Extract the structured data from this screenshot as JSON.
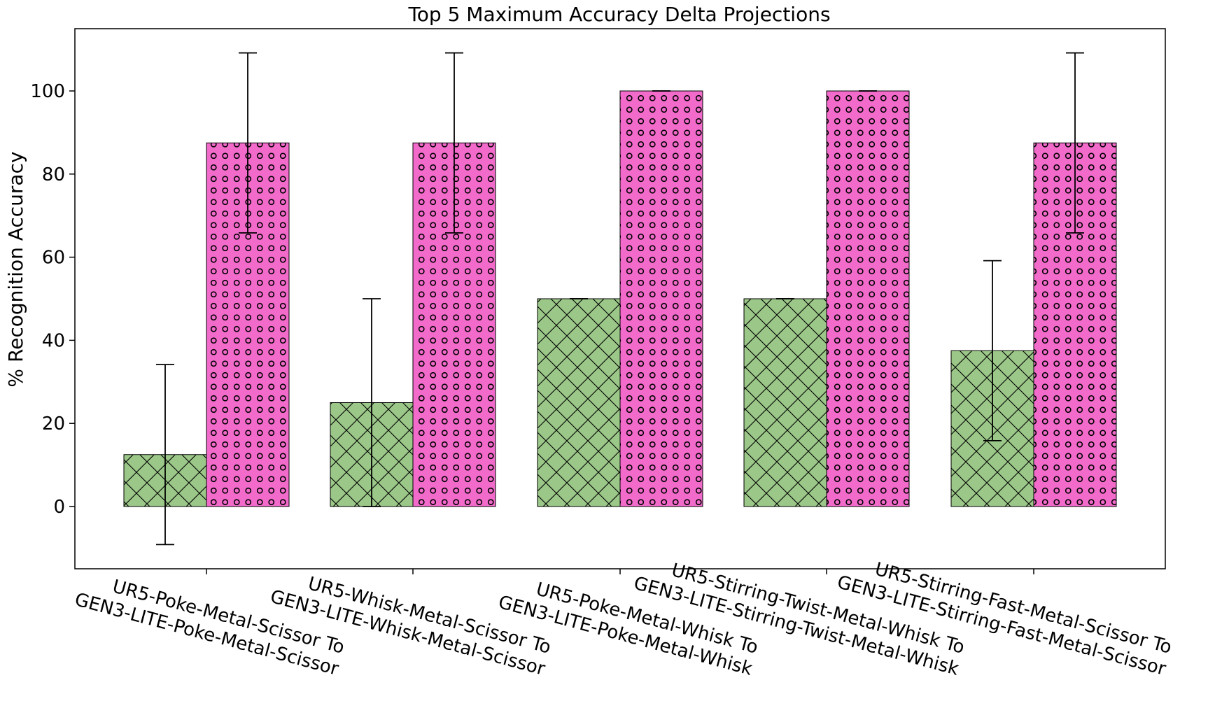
{
  "chart_data": {
    "type": "bar",
    "title": "Top 5 Maximum Accuracy Delta Projections",
    "xlabel": "",
    "ylabel": "% Recognition Accuracy",
    "ylim": [
      -15,
      115
    ],
    "yticks": [
      0,
      20,
      40,
      60,
      80,
      100
    ],
    "grid": false,
    "legend": "none",
    "categories": [
      [
        "UR5-Poke-Metal-Scissor To",
        "GEN3-LITE-Poke-Metal-Scissor"
      ],
      [
        "UR5-Whisk-Metal-Scissor To",
        "GEN3-LITE-Whisk-Metal-Scissor"
      ],
      [
        "UR5-Poke-Metal-Whisk To",
        "GEN3-LITE-Poke-Metal-Whisk"
      ],
      [
        "UR5-Stirring-Twist-Metal-Whisk To",
        "GEN3-LITE-Stirring-Twist-Metal-Whisk"
      ],
      [
        "UR5-Stirring-Fast-Metal-Scissor To",
        "GEN3-LITE-Stirring-Fast-Metal-Scissor"
      ]
    ],
    "series": [
      {
        "color": "#9bc788",
        "hatch": "crosshatch",
        "values": [
          12.5,
          25,
          50,
          50,
          37.5
        ],
        "errors": [
          21.65,
          25,
          0,
          0,
          21.65
        ]
      },
      {
        "color": "#f26bcb",
        "hatch": "circles",
        "values": [
          87.5,
          87.5,
          100,
          100,
          87.5
        ],
        "errors": [
          21.65,
          21.65,
          0,
          0,
          21.65
        ]
      }
    ]
  }
}
